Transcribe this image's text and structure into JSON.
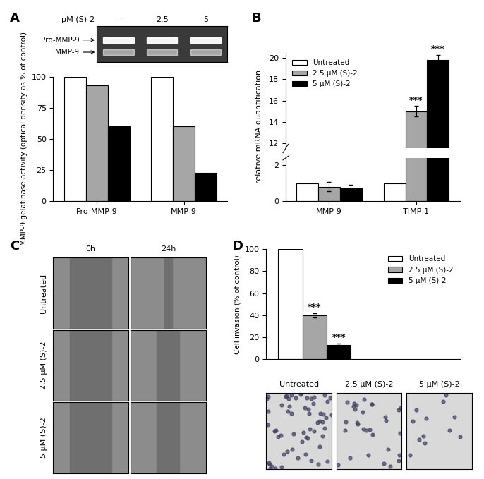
{
  "panels": [
    "A",
    "B",
    "C",
    "D"
  ],
  "gel": {
    "dose_label": "µM (S)-2",
    "lanes": [
      "–",
      "2.5",
      "5"
    ],
    "bands": [
      "Pro-MMP-9",
      "MMP-9"
    ]
  },
  "chart_data": [
    {
      "type": "bar",
      "y_label": "MMP-9 gelatinase activity (optical density as % of control)",
      "categories": [
        "Pro-MMP-9",
        "MMP-9"
      ],
      "ylim": [
        0,
        100
      ],
      "yticks": [
        0,
        25,
        50,
        75,
        100
      ],
      "series": [
        {
          "color": "#ffffff",
          "values": [
            100,
            100
          ]
        },
        {
          "color": "#a6a6a6",
          "values": [
            93,
            60
          ]
        },
        {
          "color": "#000000",
          "values": [
            60,
            23
          ]
        }
      ]
    },
    {
      "type": "bar",
      "y_label": "relative mRNA quantification",
      "categories": [
        "MMP-9",
        "TIMP-1"
      ],
      "legend": "upper left",
      "segments": [
        {
          "ylim": [
            0,
            2.4
          ],
          "yticks": [
            0,
            2
          ]
        },
        {
          "ylim": [
            11.5,
            20.5
          ],
          "yticks": [
            12,
            14,
            16,
            18,
            20
          ]
        }
      ],
      "series": [
        {
          "name": "Untreated",
          "color": "#ffffff",
          "values": [
            1,
            1
          ],
          "error": [
            null,
            null
          ],
          "significance": [
            null,
            null
          ]
        },
        {
          "name": "2.5 µM (S)-2",
          "color": "#a6a6a6",
          "values": [
            0.8,
            15
          ],
          "error": [
            0.25,
            0.5
          ],
          "significance": [
            null,
            "***"
          ]
        },
        {
          "name": "5 µM (S)-2",
          "color": "#000000",
          "values": [
            0.7,
            19.8
          ],
          "error": [
            0.2,
            0.5
          ],
          "significance": [
            null,
            "***"
          ]
        }
      ]
    },
    {
      "type": "bar",
      "y_label": "Cell invasion (% of control)",
      "categories": [
        null
      ],
      "legend": "upper right",
      "ylim": [
        0,
        100
      ],
      "yticks": [
        0,
        20,
        40,
        60,
        80,
        100
      ],
      "tick_labels": "y",
      "series": [
        {
          "name": "Untreated",
          "color": "#ffffff",
          "values": [
            100
          ],
          "error": [
            null
          ],
          "significance": [
            null
          ]
        },
        {
          "name": "2.5 µM (S)-2",
          "color": "#a6a6a6",
          "values": [
            40
          ],
          "error": [
            2
          ],
          "significance": [
            "***"
          ]
        },
        {
          "name": "5 µM (S)-2",
          "color": "#000000",
          "values": [
            13
          ],
          "error": [
            1.5
          ],
          "significance": [
            "***"
          ]
        }
      ]
    }
  ],
  "scratch": {
    "columns": [
      "0h",
      "24h"
    ],
    "rows": [
      "Untreated",
      "2.5 µM (S)-2",
      "5 µM (S)-2"
    ]
  },
  "invasion_images": [
    "Untreated",
    "2.5 µM (S)-2",
    "5 µM (S)-2"
  ]
}
